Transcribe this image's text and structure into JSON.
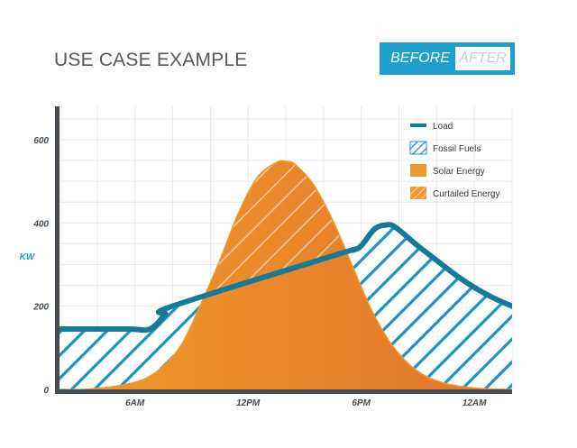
{
  "header": {
    "title": "USE CASE EXAMPLE",
    "toggle": {
      "before_label": "BEFORE",
      "after_label": "AFTER",
      "selected": "BEFORE"
    }
  },
  "colors": {
    "load": "#157a99",
    "fossil": "#1a93c4",
    "solar_light": "#ef9a2a",
    "solar_dark": "#e2752b",
    "axis": "#474d54",
    "grid": "#e8e8e8",
    "ylabel": "#1ea0cf"
  },
  "chart_data": {
    "type": "area",
    "ylabel": "KW",
    "xlabel": "",
    "ylim": [
      0,
      680
    ],
    "xlim": [
      0,
      24
    ],
    "yticks": [
      0,
      200,
      400,
      600
    ],
    "ytick_labels": [
      "0",
      "200",
      "400",
      "600"
    ],
    "xticks": [
      4,
      10,
      16,
      22
    ],
    "xtick_labels": [
      "6AM",
      "12PM",
      "6PM",
      "12AM"
    ],
    "grid": true,
    "legend_position": "top-right",
    "legend": [
      {
        "key": "load",
        "label": "Load"
      },
      {
        "key": "fossil",
        "label": "Fossil Fuels"
      },
      {
        "key": "solar",
        "label": "Solar Energy"
      },
      {
        "key": "curtailed",
        "label": "Curtailed Energy"
      }
    ],
    "series": [
      {
        "name": "Load",
        "x": [
          0,
          3.6,
          4.8,
          5.6,
          6,
          14.8,
          15.6,
          16,
          16.7,
          17.3,
          17.8,
          19,
          20,
          21,
          22,
          23,
          24
        ],
        "values": [
          145,
          145,
          145,
          180,
          200,
          325,
          335,
          345,
          385,
          395,
          390,
          345,
          310,
          275,
          245,
          220,
          200
        ]
      },
      {
        "name": "Solar Energy",
        "x": [
          0,
          1.2,
          2.5,
          3.5,
          4.5,
          5.5,
          6.5,
          7.5,
          8.5,
          9.5,
          10.5,
          11.5,
          12,
          12.5,
          13.5,
          14.5,
          15.5,
          16.5,
          17.5,
          18.5,
          19.5,
          20.5,
          21.5,
          22.5,
          24
        ],
        "values": [
          0,
          0,
          5,
          12,
          25,
          55,
          110,
          205,
          310,
          425,
          510,
          545,
          548,
          540,
          490,
          405,
          300,
          195,
          115,
          62,
          30,
          14,
          6,
          2,
          0
        ]
      }
    ]
  }
}
